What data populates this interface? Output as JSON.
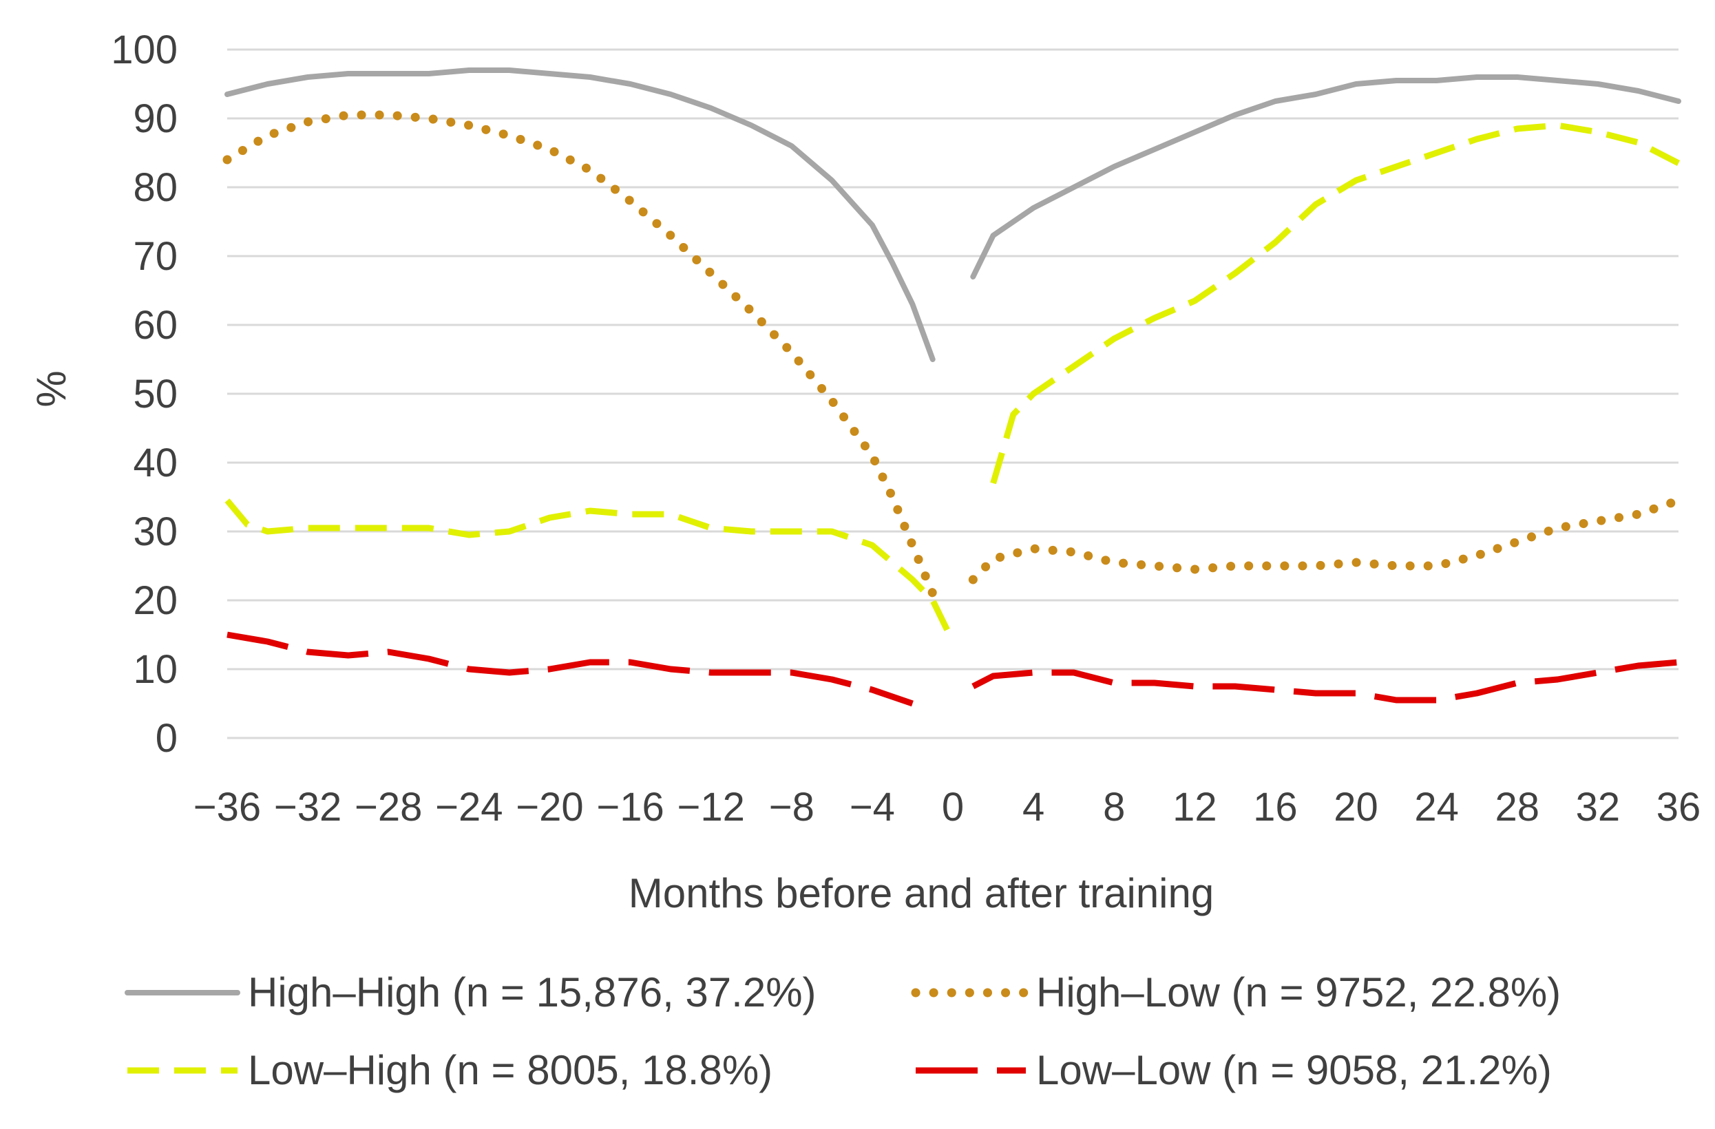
{
  "chart_data": {
    "type": "line",
    "title": "",
    "xlabel": "Months before and after training",
    "ylabel": "%",
    "xlim": [
      -36,
      36
    ],
    "ylim": [
      0,
      100
    ],
    "grid": true,
    "legend_position": "bottom",
    "y_ticks": [
      "0",
      "10",
      "20",
      "30",
      "40",
      "50",
      "60",
      "70",
      "80",
      "90",
      "100"
    ],
    "x_ticks": [
      "−36",
      "−32",
      "−28",
      "−24",
      "−20",
      "−16",
      "−12",
      "−8",
      "−4",
      "0",
      "4",
      "8",
      "12",
      "16",
      "20",
      "24",
      "28",
      "32",
      "36"
    ],
    "series": [
      {
        "name": "High–High (n = 15,876, 37.2%)",
        "style": "solid",
        "color": "#a6a6a6",
        "before": [
          [
            -36,
            93.5
          ],
          [
            -34,
            95
          ],
          [
            -32,
            96
          ],
          [
            -30,
            96.5
          ],
          [
            -28,
            96.5
          ],
          [
            -26,
            96.5
          ],
          [
            -24,
            97
          ],
          [
            -22,
            97
          ],
          [
            -20,
            96.5
          ],
          [
            -18,
            96
          ],
          [
            -16,
            95
          ],
          [
            -14,
            93.5
          ],
          [
            -12,
            91.5
          ],
          [
            -10,
            89
          ],
          [
            -8,
            86
          ],
          [
            -6,
            81
          ],
          [
            -4,
            74.5
          ],
          [
            -3,
            69
          ],
          [
            -2,
            63
          ],
          [
            -1,
            55
          ]
        ],
        "after": [
          [
            1,
            67
          ],
          [
            2,
            73
          ],
          [
            4,
            77
          ],
          [
            6,
            80
          ],
          [
            8,
            83
          ],
          [
            10,
            85.5
          ],
          [
            12,
            88
          ],
          [
            14,
            90.5
          ],
          [
            16,
            92.5
          ],
          [
            18,
            93.5
          ],
          [
            20,
            95
          ],
          [
            22,
            95.5
          ],
          [
            24,
            95.5
          ],
          [
            26,
            96
          ],
          [
            28,
            96
          ],
          [
            30,
            95.5
          ],
          [
            32,
            95
          ],
          [
            34,
            94
          ],
          [
            36,
            92.5
          ]
        ]
      },
      {
        "name": "High–Low (n = 9752, 22.8%)",
        "style": "dotted",
        "color": "#c98b1a",
        "before": [
          [
            -36,
            84
          ],
          [
            -34,
            87.5
          ],
          [
            -32,
            89.5
          ],
          [
            -30,
            90.5
          ],
          [
            -28,
            90.5
          ],
          [
            -26,
            90
          ],
          [
            -24,
            89
          ],
          [
            -22,
            87.5
          ],
          [
            -20,
            85.5
          ],
          [
            -18,
            82.5
          ],
          [
            -16,
            78
          ],
          [
            -14,
            73
          ],
          [
            -12,
            67.5
          ],
          [
            -10,
            62
          ],
          [
            -8,
            56
          ],
          [
            -6,
            49
          ],
          [
            -4,
            41
          ],
          [
            -3,
            35
          ],
          [
            -2,
            28
          ],
          [
            -1,
            21
          ]
        ],
        "after": [
          [
            1,
            23
          ],
          [
            2,
            26
          ],
          [
            4,
            27.5
          ],
          [
            6,
            27
          ],
          [
            8,
            25.5
          ],
          [
            10,
            25
          ],
          [
            12,
            24.5
          ],
          [
            14,
            25
          ],
          [
            16,
            25
          ],
          [
            18,
            25
          ],
          [
            20,
            25.5
          ],
          [
            22,
            25
          ],
          [
            24,
            25
          ],
          [
            26,
            26.5
          ],
          [
            28,
            28.5
          ],
          [
            30,
            30.5
          ],
          [
            32,
            31.5
          ],
          [
            34,
            32.5
          ],
          [
            36,
            34.5
          ]
        ]
      },
      {
        "name": "Low–High (n = 8005, 18.8%)",
        "style": "dashed",
        "color": "#e0f000",
        "before": [
          [
            -36,
            34.5
          ],
          [
            -35,
            31
          ],
          [
            -34,
            30
          ],
          [
            -32,
            30.5
          ],
          [
            -30,
            30.5
          ],
          [
            -28,
            30.5
          ],
          [
            -26,
            30.5
          ],
          [
            -24,
            29.5
          ],
          [
            -22,
            30
          ],
          [
            -20,
            32
          ],
          [
            -18,
            33
          ],
          [
            -16,
            32.5
          ],
          [
            -14,
            32.5
          ],
          [
            -12,
            30.5
          ],
          [
            -10,
            30
          ],
          [
            -8,
            30
          ],
          [
            -6,
            30
          ],
          [
            -4,
            28
          ],
          [
            -2,
            23
          ],
          [
            -1,
            20
          ],
          [
            0,
            14
          ]
        ],
        "after": [
          [
            2,
            37
          ],
          [
            3,
            47
          ],
          [
            4,
            50
          ],
          [
            6,
            54
          ],
          [
            8,
            58
          ],
          [
            10,
            61
          ],
          [
            12,
            63.5
          ],
          [
            14,
            67.5
          ],
          [
            16,
            72
          ],
          [
            18,
            77.5
          ],
          [
            20,
            81
          ],
          [
            22,
            83
          ],
          [
            24,
            85
          ],
          [
            26,
            87
          ],
          [
            28,
            88.5
          ],
          [
            30,
            89
          ],
          [
            32,
            88
          ],
          [
            34,
            86.5
          ],
          [
            36,
            83.5
          ]
        ]
      },
      {
        "name": "Low–Low (n = 9058, 21.2%)",
        "style": "longdash",
        "color": "#e00000",
        "before": [
          [
            -36,
            15
          ],
          [
            -34,
            14
          ],
          [
            -32,
            12.5
          ],
          [
            -30,
            12
          ],
          [
            -28,
            12.5
          ],
          [
            -26,
            11.5
          ],
          [
            -24,
            10
          ],
          [
            -22,
            9.5
          ],
          [
            -20,
            10
          ],
          [
            -18,
            11
          ],
          [
            -16,
            11
          ],
          [
            -14,
            10
          ],
          [
            -12,
            9.5
          ],
          [
            -10,
            9.5
          ],
          [
            -8,
            9.5
          ],
          [
            -6,
            8.5
          ],
          [
            -4,
            7
          ],
          [
            -2,
            5
          ]
        ],
        "after": [
          [
            1,
            7.5
          ],
          [
            2,
            9
          ],
          [
            4,
            9.5
          ],
          [
            6,
            9.5
          ],
          [
            8,
            8
          ],
          [
            10,
            8
          ],
          [
            12,
            7.5
          ],
          [
            14,
            7.5
          ],
          [
            16,
            7
          ],
          [
            18,
            6.5
          ],
          [
            20,
            6.5
          ],
          [
            22,
            5.5
          ],
          [
            24,
            5.5
          ],
          [
            26,
            6.5
          ],
          [
            28,
            8
          ],
          [
            30,
            8.5
          ],
          [
            32,
            9.5
          ],
          [
            34,
            10.5
          ],
          [
            36,
            11
          ]
        ]
      }
    ]
  }
}
